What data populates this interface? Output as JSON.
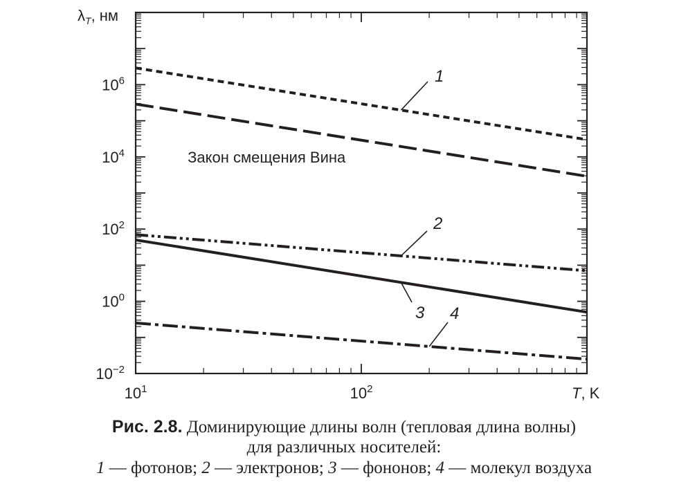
{
  "chart_data": {
    "type": "line",
    "xscale": "log",
    "yscale": "log",
    "xlim": [
      10,
      1000
    ],
    "ylim": [
      0.01,
      100000000
    ],
    "xlabel_var": "T",
    "xlabel_unit": "K",
    "ylabel_var": "λ",
    "ylabel_sub": "T",
    "ylabel_unit": "нм",
    "x_ticks": [
      {
        "value": 10,
        "base": "10",
        "exp": "1"
      },
      {
        "value": 100,
        "base": "10",
        "exp": "2"
      }
    ],
    "y_ticks": [
      {
        "value": 0.01,
        "base": "10",
        "exp": "−2"
      },
      {
        "value": 1,
        "base": "10",
        "exp": "0"
      },
      {
        "value": 100,
        "base": "10",
        "exp": "2"
      },
      {
        "value": 10000,
        "base": "10",
        "exp": "4"
      },
      {
        "value": 1000000,
        "base": "10",
        "exp": "6"
      }
    ],
    "grid": false,
    "series": [
      {
        "label": "1",
        "style": "short-dash",
        "x": [
          10,
          1000
        ],
        "y": [
          2900000,
          30000
        ]
      },
      {
        "label": "",
        "style": "long-dash",
        "x": [
          10,
          1000
        ],
        "y": [
          290000,
          2900
        ]
      },
      {
        "label": "2",
        "style": "dash-dot-dot",
        "x": [
          10,
          1000
        ],
        "y": [
          70,
          7
        ]
      },
      {
        "label": "3",
        "style": "solid",
        "x": [
          10,
          1000
        ],
        "y": [
          50,
          0.5
        ]
      },
      {
        "label": "4",
        "style": "dash-dot",
        "x": [
          10,
          1000
        ],
        "y": [
          0.25,
          0.025
        ]
      }
    ],
    "annotations": [
      {
        "text": "Закон смещения Вина",
        "x": 17,
        "y": 10000
      }
    ]
  },
  "caption": {
    "label": "Рис. 2.8.",
    "line1": "Доминирующие длины волн (тепловая длина волны)",
    "line2": "для различных носителей:",
    "n1": "1",
    "t1": " — фотонов; ",
    "n2": "2",
    "t2": " — электронов; ",
    "n3": "3",
    "t3": " — фононов; ",
    "n4": "4",
    "t4": " — молекул воздуха"
  }
}
